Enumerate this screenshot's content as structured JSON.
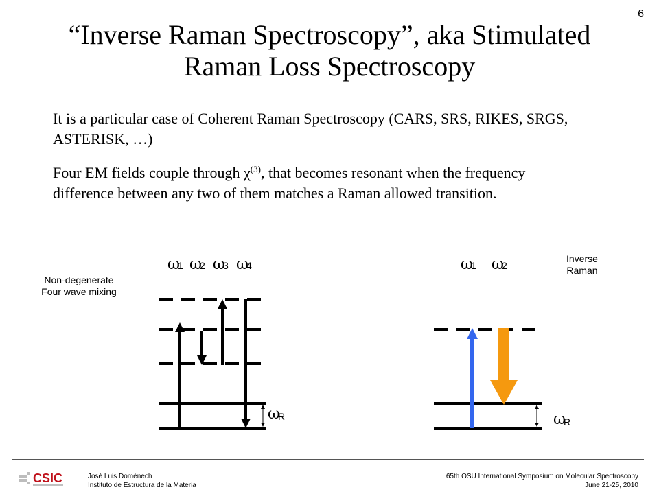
{
  "slide_number": "6",
  "title_line1": "“Inverse Raman Spectroscopy”, aka Stimulated",
  "title_line2": "Raman Loss Spectroscopy",
  "paragraph1": "It is a particular case of Coherent Raman Spectroscopy (CARS, SRS, RIKES, SRGS, ASTERISK, …)",
  "paragraph2_before": "Four EM fields couple through ",
  "paragraph2_chi": "χ",
  "paragraph2_sup": "(3)",
  "paragraph2_after": ", that becomes resonant when the frequency difference between any two of them matches a Raman allowed transition.",
  "left_diagram": {
    "label_line1": "Non-degenerate",
    "label_line2": "Four wave mixing",
    "omegas": [
      {
        "symbol": "ω",
        "sub": "1"
      },
      {
        "symbol": "ω",
        "sub": "2"
      },
      {
        "symbol": "ω",
        "sub": "3"
      },
      {
        "symbol": "ω",
        "sub": "4"
      }
    ],
    "raman_symbol": "ω",
    "raman_sub": "R"
  },
  "right_diagram": {
    "label_line1": "Inverse",
    "label_line2": "Raman",
    "omegas": [
      {
        "symbol": "ω",
        "sub": "1"
      },
      {
        "symbol": "ω",
        "sub": "2"
      }
    ],
    "raman_symbol": "ω",
    "raman_sub": "R",
    "colors": {
      "pump_up": "#3366ee",
      "stokes_down": "#f5990f"
    }
  },
  "footer": {
    "logo_text": "CSIC",
    "author_line1": "José Luis Doménech",
    "author_line2": "Instituto de Estructura de la Materia",
    "conference_line1": "65th OSU International Symposium on Molecular Spectroscopy",
    "conference_line2": "June 21-25, 2010"
  }
}
